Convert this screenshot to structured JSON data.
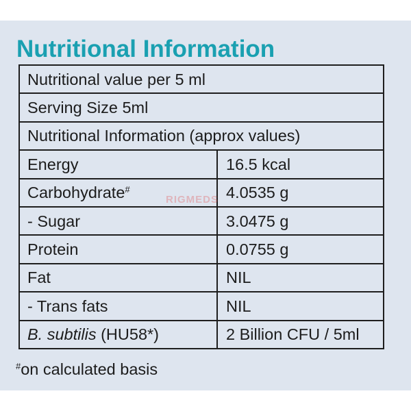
{
  "title": "Nutritional Information",
  "header_rows": [
    "Nutritional value per 5 ml",
    "Serving Size 5ml",
    "Nutritional Information (approx values)"
  ],
  "rows": {
    "energy": {
      "label": "Energy",
      "value": "16.5 kcal"
    },
    "carbohydrate": {
      "label": "Carbohydrate",
      "mark": "#",
      "value": "4.0535 g"
    },
    "sugar": {
      "label": "- Sugar",
      "value": "3.0475 g"
    },
    "protein": {
      "label": "Protein",
      "value": "0.0755 g"
    },
    "fat": {
      "label": "Fat",
      "value": "NIL"
    },
    "trans_fats": {
      "label": "- Trans fats",
      "value": "NIL"
    },
    "b_subtilis": {
      "label_italic": "B. subtilis",
      "label_rest": " (HU58*)",
      "value": "2 Billion CFU / 5ml"
    }
  },
  "footnote": {
    "mark": "#",
    "text": "on calculated basis"
  },
  "watermark": "RIGMEDS",
  "colors": {
    "title": "#1aa0b1",
    "background": "#dee5ef",
    "text": "#1c1c1c"
  }
}
